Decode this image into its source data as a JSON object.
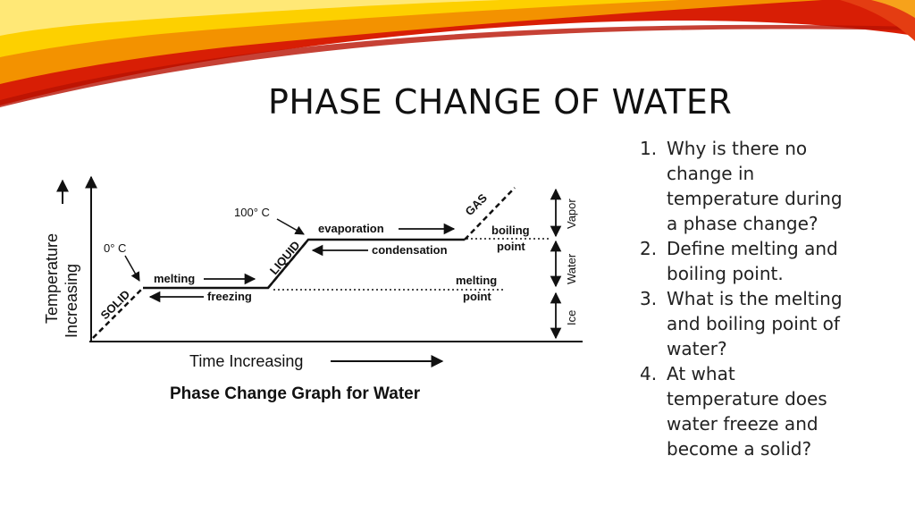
{
  "slide": {
    "title": "PHASE CHANGE OF WATER",
    "banner_colors": [
      "#d81e05",
      "#f39200",
      "#fdd000",
      "#e43d12"
    ]
  },
  "diagram": {
    "caption": "Phase Change Graph for Water",
    "y_axis_label_1": "Temperature",
    "y_axis_label_2": "Increasing",
    "x_axis_label": "Time Increasing",
    "labels": {
      "temp_100": "100° C",
      "temp_0": "0° C",
      "solid": "SOLID",
      "liquid": "LIQUID",
      "gas": "GAS",
      "melting": "melting",
      "freezing": "freezing",
      "evaporation": "evaporation",
      "condensation": "condensation",
      "boiling_1": "boiling",
      "boiling_2": "point",
      "melting_pt_1": "melting",
      "melting_pt_2": "point",
      "vapor": "Vapor",
      "water": "Water",
      "ice": "Ice"
    }
  },
  "questions": [
    {
      "num": "1.",
      "lines": [
        "Why is there no",
        "change in",
        "temperature during",
        "a phase change?"
      ]
    },
    {
      "num": "2.",
      "lines": [
        "Define melting and",
        "boiling point."
      ]
    },
    {
      "num": "3.",
      "lines": [
        "What is the melting",
        "and boiling point of",
        "water?"
      ]
    },
    {
      "num": "4.",
      "lines": [
        "At what",
        "temperature does",
        "water freeze and",
        "become a solid?"
      ]
    }
  ]
}
